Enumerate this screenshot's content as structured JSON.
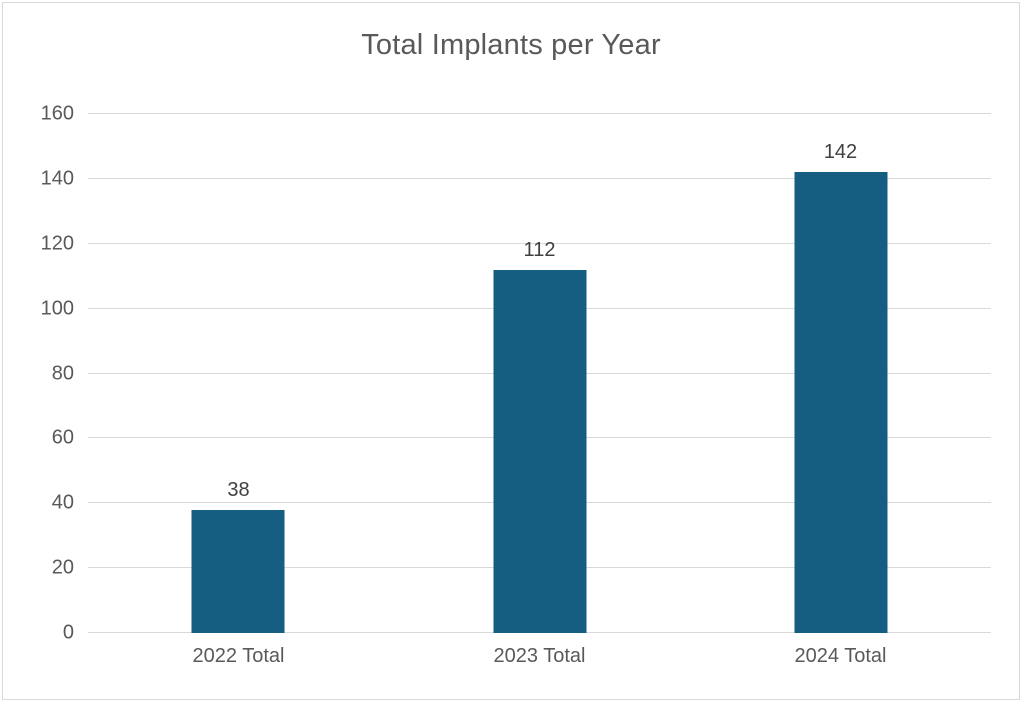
{
  "chart_data": {
    "type": "bar",
    "title": "Total Implants per Year",
    "categories": [
      "2022 Total",
      "2023 Total",
      "2024 Total"
    ],
    "values": [
      38,
      112,
      142
    ],
    "yticks": [
      0,
      20,
      40,
      60,
      80,
      100,
      120,
      140,
      160
    ],
    "ylim": [
      0,
      160
    ],
    "xlabel": "",
    "ylabel": "",
    "grid": true,
    "legend_position": "none",
    "colors": {
      "bar": "#155e82",
      "gridline": "#d9d9d9",
      "tick_text": "#595959",
      "title_text": "#595959",
      "value_label_text": "#404040",
      "frame_border": "#d9d9d9",
      "background": "#ffffff"
    }
  }
}
